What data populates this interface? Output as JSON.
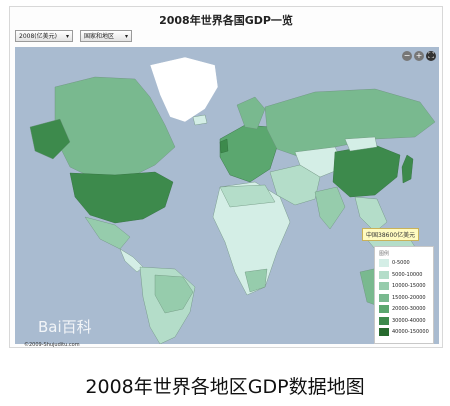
{
  "map": {
    "title": "2008年世界各国GDP一览",
    "year_select": "2008(亿美元)",
    "region_select": "国家和地区",
    "zoom_out": "−",
    "zoom_in": "+",
    "tooltip": "中国38600亿美元",
    "watermark": "Bai百科",
    "copyright": "©2009-Shujuditu.com"
  },
  "legend": {
    "title": "图例",
    "items": [
      {
        "label": "0-5000",
        "color": "#d4eee6"
      },
      {
        "label": "5000-10000",
        "color": "#b4ddc9"
      },
      {
        "label": "10000-15000",
        "color": "#96ccac"
      },
      {
        "label": "15000-20000",
        "color": "#79b98f"
      },
      {
        "label": "20000-30000",
        "color": "#5ba76f"
      },
      {
        "label": "30000-40000",
        "color": "#3d8a4c"
      },
      {
        "label": "40000-150000",
        "color": "#276a2e"
      }
    ]
  },
  "caption": "2008年世界各地区GDP数据地图"
}
